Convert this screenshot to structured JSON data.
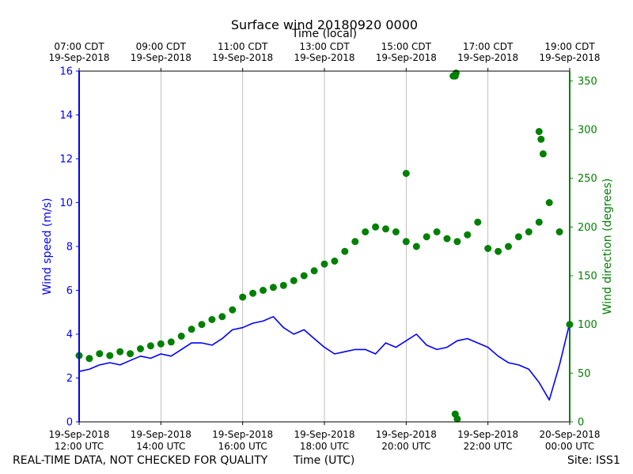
{
  "chart_data": {
    "type": "line",
    "title": "Surface wind 20180920 0000",
    "xlabel_bottom": "Time (UTC)",
    "xlabel_top": "Time (local)",
    "ylabel_left": "Wind speed (m/s)",
    "ylabel_right": "Wind direction (degrees)",
    "x_range_hours_utc": [
      12,
      24
    ],
    "ylim_left": [
      0,
      16
    ],
    "ylim_right": [
      0,
      360
    ],
    "yticks_left": [
      "0",
      "2",
      "4",
      "6",
      "8",
      "10",
      "12",
      "14",
      "16"
    ],
    "yticks_right": [
      "0",
      "50",
      "100",
      "150",
      "200",
      "250",
      "300",
      "350"
    ],
    "xticks_bottom": [
      {
        "date": "19-Sep-2018",
        "time": "12:00 UTC"
      },
      {
        "date": "19-Sep-2018",
        "time": "14:00 UTC"
      },
      {
        "date": "19-Sep-2018",
        "time": "16:00 UTC"
      },
      {
        "date": "19-Sep-2018",
        "time": "18:00 UTC"
      },
      {
        "date": "19-Sep-2018",
        "time": "20:00 UTC"
      },
      {
        "date": "19-Sep-2018",
        "time": "22:00 UTC"
      },
      {
        "date": "20-Sep-2018",
        "time": "00:00 UTC"
      }
    ],
    "xticks_top": [
      {
        "time": "07:00 CDT",
        "date": "19-Sep-2018"
      },
      {
        "time": "09:00 CDT",
        "date": "19-Sep-2018"
      },
      {
        "time": "11:00 CDT",
        "date": "19-Sep-2018"
      },
      {
        "time": "13:00 CDT",
        "date": "19-Sep-2018"
      },
      {
        "time": "15:00 CDT",
        "date": "19-Sep-2018"
      },
      {
        "time": "17:00 CDT",
        "date": "19-Sep-2018"
      },
      {
        "time": "19:00 CDT",
        "date": "19-Sep-2018"
      }
    ],
    "grid": "vertical",
    "series": [
      {
        "name": "Wind speed",
        "axis": "left",
        "style": "line",
        "color": "#0000ff",
        "x": [
          12.0,
          12.25,
          12.5,
          12.75,
          13.0,
          13.25,
          13.5,
          13.75,
          14.0,
          14.25,
          14.5,
          14.75,
          15.0,
          15.25,
          15.5,
          15.75,
          16.0,
          16.25,
          16.5,
          16.75,
          17.0,
          17.25,
          17.5,
          17.75,
          18.0,
          18.25,
          18.5,
          18.75,
          19.0,
          19.25,
          19.5,
          19.75,
          20.0,
          20.25,
          20.5,
          20.75,
          21.0,
          21.25,
          21.5,
          21.75,
          22.0,
          22.25,
          22.5,
          22.75,
          23.0,
          23.25,
          23.5,
          23.75,
          24.0
        ],
        "y": [
          2.3,
          2.4,
          2.6,
          2.7,
          2.6,
          2.8,
          3.0,
          2.9,
          3.1,
          3.0,
          3.3,
          3.6,
          3.6,
          3.5,
          3.8,
          4.2,
          4.3,
          4.5,
          4.6,
          4.8,
          4.3,
          4.0,
          4.2,
          3.8,
          3.4,
          3.1,
          3.2,
          3.3,
          3.3,
          3.1,
          3.6,
          3.4,
          3.7,
          4.0,
          3.5,
          3.3,
          3.4,
          3.7,
          3.8,
          3.6,
          3.4,
          3.0,
          2.7,
          2.6,
          2.4,
          1.8,
          1.0,
          2.6,
          4.5
        ]
      },
      {
        "name": "Wind direction",
        "axis": "right",
        "style": "scatter",
        "color": "#008000",
        "x": [
          12.0,
          12.25,
          12.5,
          12.75,
          13.0,
          13.25,
          13.5,
          13.75,
          14.0,
          14.25,
          14.5,
          14.75,
          15.0,
          15.25,
          15.5,
          15.75,
          16.0,
          16.25,
          16.5,
          16.75,
          17.0,
          17.25,
          17.5,
          17.75,
          18.0,
          18.25,
          18.5,
          18.75,
          19.0,
          19.25,
          19.5,
          19.75,
          20.0,
          20.25,
          20.5,
          20.75,
          21.0,
          21.25,
          21.5,
          21.75,
          22.0,
          22.25,
          22.5,
          22.75,
          23.0,
          23.25,
          23.5,
          23.75,
          24.0
        ],
        "y": [
          68,
          65,
          70,
          68,
          72,
          70,
          75,
          78,
          80,
          82,
          88,
          95,
          100,
          105,
          108,
          115,
          128,
          132,
          135,
          138,
          140,
          145,
          150,
          155,
          162,
          165,
          175,
          185,
          195,
          200,
          198,
          195,
          185,
          180,
          190,
          195,
          188,
          185,
          192,
          205,
          178,
          175,
          180,
          190,
          195,
          205,
          225,
          195,
          100
        ]
      },
      {
        "name": "Wind direction outliers",
        "axis": "right",
        "style": "scatter",
        "color": "#008000",
        "x": [
          20.0,
          21.15,
          21.2,
          21.22,
          23.25,
          23.3,
          23.35,
          21.2,
          21.25
        ],
        "y": [
          255,
          355,
          355,
          358,
          298,
          290,
          275,
          8,
          3
        ]
      }
    ]
  },
  "footer": {
    "left": "REAL-TIME DATA, NOT CHECKED FOR QUALITY",
    "center": "Time (UTC)",
    "right": "Site: ISS1"
  }
}
